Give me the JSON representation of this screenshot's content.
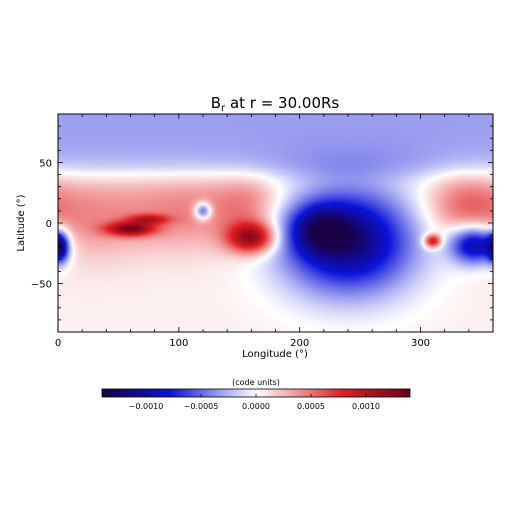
{
  "chart_data": {
    "type": "heatmap",
    "title": "B",
    "title_subscript": "r",
    "title_rest": " at r = 30.00Rs",
    "xlabel": "Longitude (°)",
    "ylabel": "Latitude (°)",
    "xlim": [
      0,
      360
    ],
    "ylim": [
      -90,
      90
    ],
    "x_ticks": [
      0,
      100,
      200,
      300
    ],
    "y_ticks": [
      -50,
      0,
      50
    ],
    "x_tick_labels": [
      "0",
      "100",
      "200",
      "300"
    ],
    "y_tick_labels": [
      "−50",
      "0",
      "50"
    ],
    "colormap": "blue-white-red",
    "colors": {
      "min": "#1a0044",
      "blue": "#0a14d8",
      "white": "#ffffff",
      "red": "#e02020",
      "max": "#6a0018"
    },
    "colorbar": {
      "label": "(code units)",
      "range": [
        -0.0014,
        0.0014
      ],
      "ticks": [
        -0.001,
        -0.0005,
        0.0,
        0.0005,
        0.001
      ],
      "tick_labels": [
        "−0.0010",
        "−0.0005",
        "0.0000",
        "0.0005",
        "0.0010"
      ]
    },
    "field": {
      "description_units": "code units",
      "background_north": -0.00032,
      "background_south": 5e-05,
      "features": [
        {
          "lon": 110,
          "lat": 10,
          "sigma_lon": 45,
          "sigma_lat": 22,
          "value": 0.00038
        },
        {
          "lon": 20,
          "lat": 5,
          "sigma_lon": 35,
          "sigma_lat": 25,
          "value": 0.0003
        },
        {
          "lon": 60,
          "lat": -5,
          "sigma_lon": 14,
          "sigma_lat": 4,
          "value": 0.001
        },
        {
          "lon": 75,
          "lat": 3,
          "sigma_lon": 12,
          "sigma_lat": 3,
          "value": 0.0006
        },
        {
          "lon": 158,
          "lat": 17,
          "sigma_lon": 18,
          "sigma_lat": 15,
          "value": 0.00025
        },
        {
          "lon": 160,
          "lat": -12,
          "sigma_lon": 14,
          "sigma_lat": 9,
          "value": 0.00115
        },
        {
          "lon": 120,
          "lat": 10,
          "sigma_lon": 5,
          "sigma_lat": 5,
          "value": -0.00085
        },
        {
          "lon": 240,
          "lat": -15,
          "sigma_lon": 38,
          "sigma_lat": 30,
          "value": -0.00125
        },
        {
          "lon": 215,
          "lat": -5,
          "sigma_lon": 18,
          "sigma_lat": 14,
          "value": -0.0006
        },
        {
          "lon": 345,
          "lat": -18,
          "sigma_lon": 14,
          "sigma_lat": 11,
          "value": -0.00115
        },
        {
          "lon": 2,
          "lat": -20,
          "sigma_lon": 5,
          "sigma_lat": 9,
          "value": -0.001
        },
        {
          "lon": 310,
          "lat": -15,
          "sigma_lon": 5,
          "sigma_lat": 4,
          "value": 0.001
        },
        {
          "lon": 335,
          "lat": 15,
          "sigma_lon": 22,
          "sigma_lat": 18,
          "value": 0.0004
        }
      ]
    }
  }
}
